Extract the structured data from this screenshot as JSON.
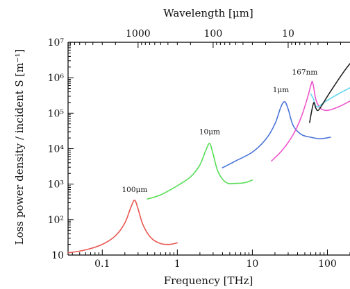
{
  "chart_data": {
    "type": "line",
    "title": "",
    "xlabel": "Frequency [THz]",
    "ylabel": "Loss power density / incident S [m⁻¹]",
    "top_xlabel": "Wavelength [μm]",
    "xscale": "log",
    "yscale": "log",
    "xlim": [
      0.035,
      200
    ],
    "ylim": [
      10,
      10000000
    ],
    "grid": false,
    "legend": "none",
    "x_tick_labels": [
      "0.1",
      "1",
      "10",
      "100"
    ],
    "x_ticks": [
      0.1,
      1,
      10,
      100
    ],
    "y_tick_labels": [
      "10",
      "10²",
      "10³",
      "10⁴",
      "10⁵",
      "10⁶",
      "10⁷"
    ],
    "y_ticks": [
      10,
      100,
      1000,
      10000,
      100000,
      1000000,
      10000000
    ],
    "top_tick_labels": [
      "1000",
      "100",
      "10"
    ],
    "top_ticks_at_frequency_thz": [
      0.3,
      3,
      30
    ],
    "series": [
      {
        "name": "100μm",
        "color": "#e8554f",
        "x": [
          0.035,
          0.06,
          0.1,
          0.15,
          0.2,
          0.24,
          0.27,
          0.3,
          0.35,
          0.45,
          0.6,
          0.8,
          1.0
        ],
        "y": [
          11.5,
          14,
          20,
          35,
          80,
          220,
          350,
          200,
          70,
          30,
          21,
          20,
          22
        ]
      },
      {
        "name": "10μm",
        "color": "#55dd55",
        "x": [
          0.4,
          0.6,
          1.0,
          1.5,
          2.0,
          2.4,
          2.7,
          3.0,
          3.5,
          4.5,
          6.0,
          8.0,
          10.0
        ],
        "y": [
          380,
          500,
          900,
          1600,
          3500,
          9000,
          14000,
          7000,
          2200,
          1100,
          1050,
          1100,
          1300
        ]
      },
      {
        "name": "1μm",
        "color": "#4a74d8",
        "x": [
          4.0,
          6.0,
          10.0,
          15.0,
          20.0,
          24.0,
          27.0,
          30.0,
          35.0,
          45.0,
          60.0,
          80.0,
          110.0
        ],
        "y": [
          2900,
          4500,
          8000,
          18000,
          50000,
          150000,
          210000,
          130000,
          45000,
          25000,
          21000,
          19000,
          21000
        ]
      },
      {
        "name": "167nm",
        "color": "#ee55cc",
        "x": [
          18.0,
          25.0,
          35.0,
          45.0,
          55.0,
          60.0,
          63.0,
          66.0,
          70.0,
          80.0,
          100.0,
          140.0,
          200.0
        ],
        "y": [
          4500,
          9000,
          25000,
          80000,
          300000,
          600000,
          780000,
          500000,
          250000,
          140000,
          120000,
          150000,
          220000
        ]
      },
      {
        "color": "#66d8ee",
        "x": [
          60.0,
          65.0,
          70.0,
          75.0,
          80.0,
          90.0,
          110.0,
          140.0,
          200.0
        ],
        "y": [
          350000,
          250000,
          160000,
          150000,
          165000,
          200000,
          260000,
          350000,
          520000
        ]
      },
      {
        "color": "#222222",
        "x": [
          58.0,
          62.0,
          66.0,
          70.0,
          75.0,
          85.0,
          100.0,
          130.0,
          170.0,
          200.0
        ],
        "y": [
          55000,
          120000,
          200000,
          140000,
          120000,
          170000,
          300000,
          700000,
          1600000,
          2500000
        ]
      }
    ],
    "annotations": [
      {
        "text": "100μm",
        "x": 0.27,
        "y": 600
      },
      {
        "text": "10μm",
        "x": 2.7,
        "y": 26000
      },
      {
        "text": "1μm",
        "x": 24.0,
        "y": 390000
      },
      {
        "text": "167nm",
        "x": 50.0,
        "y": 1220000
      }
    ]
  }
}
